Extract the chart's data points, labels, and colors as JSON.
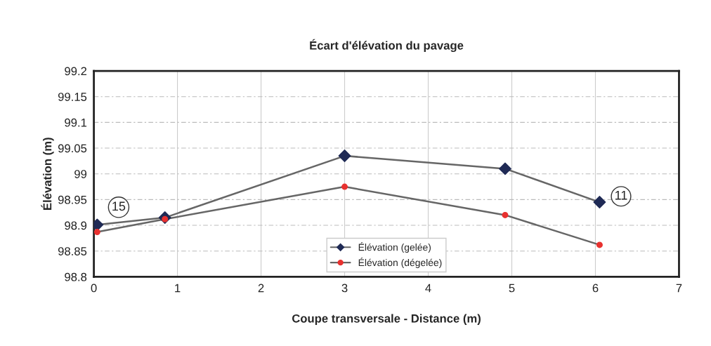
{
  "chart_data": {
    "type": "line",
    "title": "Écart d'élévation du pavage",
    "xlabel": "Coupe transversale - Distance (m)",
    "ylabel": "Élévation (m)",
    "series": [
      {
        "name": "Élévation (gelée)",
        "color": "#1f2a55",
        "marker": "diamond",
        "x": [
          0.04,
          0.85,
          3.0,
          4.92,
          6.05
        ],
        "values": [
          98.901,
          98.915,
          99.035,
          99.01,
          98.945
        ]
      },
      {
        "name": "Élévation (dégelée)",
        "color": "#e8312f",
        "marker": "circle",
        "x": [
          0.04,
          0.85,
          3.0,
          4.92,
          6.05
        ],
        "values": [
          98.887,
          98.912,
          98.975,
          98.92,
          98.862
        ]
      }
    ],
    "annotations": [
      {
        "text": "15",
        "x": 0.04,
        "y": 98.901
      },
      {
        "text": "11",
        "x": 6.05,
        "y": 98.945
      }
    ],
    "xlim": [
      0,
      7
    ],
    "xticks": [
      0,
      1,
      2,
      3,
      4,
      5,
      6,
      7
    ],
    "ylim": [
      98.8,
      99.2
    ],
    "yticks": [
      98.8,
      98.85,
      98.9,
      98.95,
      99,
      99.05,
      99.1,
      99.15,
      99.2
    ],
    "grid": true,
    "legend": "bottom",
    "line_style": "solid"
  }
}
